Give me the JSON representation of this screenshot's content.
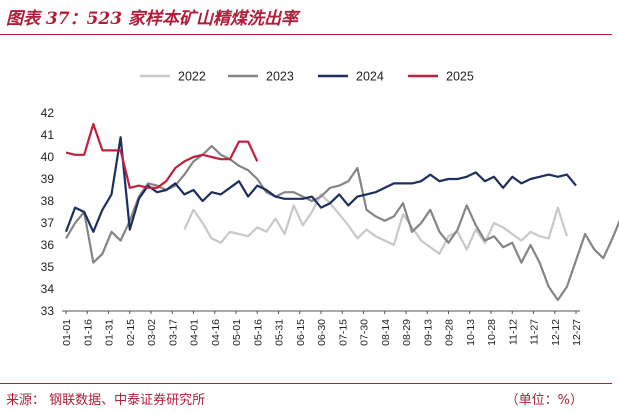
{
  "header": {
    "title": "图表 37：523 家样本矿山精煤洗出率"
  },
  "footer": {
    "source": "来源：  钢联数据、中泰证券研究所",
    "unit": "（单位：%）"
  },
  "colors": {
    "accent": "#b01e3a",
    "s2022": "#c8c8c8",
    "s2023": "#858585",
    "s2024": "#1c2f5e",
    "s2025": "#c0203e"
  },
  "chart_data": {
    "type": "line",
    "title": "523 家样本矿山精煤洗出率",
    "ylim": [
      33,
      42
    ],
    "yticks": [
      "33",
      "34",
      "35",
      "36",
      "37",
      "38",
      "39",
      "40",
      "41",
      "42"
    ],
    "x_ticks": [
      "01-01",
      "01-16",
      "01-31",
      "02-15",
      "03-02",
      "03-17",
      "04-01",
      "04-16",
      "05-01",
      "05-16",
      "05-31",
      "06-15",
      "06-30",
      "07-15",
      "07-30",
      "08-14",
      "08-29",
      "09-13",
      "09-28",
      "10-13",
      "10-28",
      "11-12",
      "11-27",
      "12-12",
      "12-27"
    ],
    "legend": {
      "position": "top",
      "entries": [
        "2022",
        "2023",
        "2024",
        "2025"
      ]
    },
    "series": [
      {
        "name": "2022",
        "color": "#c8c8c8",
        "values": [
          null,
          null,
          null,
          null,
          null,
          null,
          null,
          null,
          null,
          null,
          null,
          null,
          null,
          36.7,
          37.6,
          37.0,
          36.3,
          36.1,
          36.6,
          36.5,
          36.4,
          36.8,
          36.6,
          37.2,
          36.5,
          37.8,
          36.9,
          37.5,
          38.3,
          37.9,
          37.4,
          36.9,
          36.3,
          36.7,
          36.4,
          36.2,
          36.0,
          37.4,
          36.8,
          36.2,
          35.9,
          35.6,
          36.4,
          36.6,
          35.8,
          36.7,
          36.1,
          37.0,
          36.8,
          36.5,
          36.2,
          36.6,
          36.4,
          36.3,
          37.7,
          36.4
        ]
      },
      {
        "name": "2023",
        "color": "#858585",
        "values": [
          36.3,
          37.0,
          37.5,
          35.2,
          35.6,
          36.6,
          36.2,
          37.1,
          38.2,
          38.8,
          38.7,
          38.5,
          38.7,
          39.2,
          39.8,
          40.1,
          40.5,
          40.1,
          39.9,
          39.6,
          39.4,
          39.0,
          38.4,
          38.2,
          38.4,
          38.4,
          38.2,
          38.0,
          38.2,
          38.6,
          38.7,
          38.9,
          39.5,
          37.6,
          37.3,
          37.1,
          37.3,
          37.9,
          36.6,
          37.0,
          37.6,
          36.6,
          36.1,
          36.7,
          37.8,
          36.9,
          36.2,
          36.4,
          35.9,
          36.1,
          35.2,
          36.0,
          35.2,
          34.1,
          33.5,
          34.1,
          35.3,
          36.5,
          35.8,
          35.4,
          36.3,
          37.3
        ]
      },
      {
        "name": "2024",
        "color": "#1c2f5e",
        "values": [
          36.6,
          37.7,
          37.5,
          36.6,
          37.6,
          38.3,
          40.9,
          36.7,
          38.1,
          38.7,
          38.4,
          38.5,
          38.8,
          38.3,
          38.5,
          38.0,
          38.4,
          38.3,
          38.6,
          38.9,
          38.2,
          38.7,
          38.5,
          38.2,
          38.1,
          38.1,
          38.1,
          38.2,
          37.7,
          37.9,
          38.3,
          37.8,
          38.2,
          38.3,
          38.4,
          38.6,
          38.8,
          38.8,
          38.8,
          38.9,
          39.2,
          38.9,
          39.0,
          39.0,
          39.1,
          39.3,
          38.9,
          39.1,
          38.6,
          39.1,
          38.8,
          39.0,
          39.1,
          39.2,
          39.1,
          39.2,
          38.7
        ]
      },
      {
        "name": "2025",
        "color": "#c0203e",
        "values": [
          40.2,
          40.1,
          40.1,
          41.5,
          40.3,
          40.3,
          40.3,
          38.6,
          38.7,
          38.6,
          38.6,
          38.9,
          39.5,
          39.8,
          40.0,
          40.1,
          40.0,
          39.9,
          39.9,
          40.7,
          40.7,
          39.8
        ]
      }
    ]
  }
}
